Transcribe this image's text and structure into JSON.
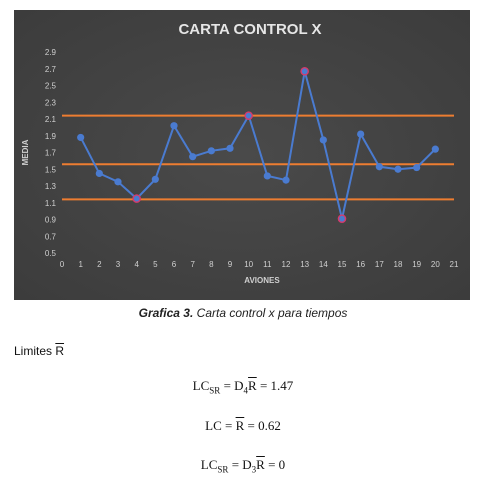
{
  "chart_data": {
    "type": "line",
    "title": "CARTA CONTROL X",
    "xlabel": "AVIONES",
    "ylabel": "MEDIA",
    "xlim": [
      0,
      21
    ],
    "ylim": [
      0.5,
      2.9
    ],
    "yticks": [
      "0.5",
      "0.7",
      "0.9",
      "1.1",
      "1.3",
      "1.5",
      "1.7",
      "1.9",
      "2.1",
      "2.3",
      "2.5",
      "2.7",
      "2.9"
    ],
    "xticks": [
      "0",
      "1",
      "2",
      "3",
      "4",
      "5",
      "6",
      "7",
      "8",
      "9",
      "10",
      "11",
      "12",
      "13",
      "14",
      "15",
      "16",
      "17",
      "18",
      "19",
      "20",
      "21"
    ],
    "grid": false,
    "series": [
      {
        "values": [
          {
            "x": 1,
            "y": 1.88
          },
          {
            "x": 2,
            "y": 1.45
          },
          {
            "x": 3,
            "y": 1.35
          },
          {
            "x": 4,
            "y": 1.15
          },
          {
            "x": 5,
            "y": 1.38
          },
          {
            "x": 6,
            "y": 2.02
          },
          {
            "x": 7,
            "y": 1.65
          },
          {
            "x": 8,
            "y": 1.72
          },
          {
            "x": 9,
            "y": 1.75
          },
          {
            "x": 10,
            "y": 2.14
          },
          {
            "x": 11,
            "y": 1.42
          },
          {
            "x": 12,
            "y": 1.37
          },
          {
            "x": 13,
            "y": 2.67
          },
          {
            "x": 14,
            "y": 1.85
          },
          {
            "x": 15,
            "y": 0.91
          },
          {
            "x": 16,
            "y": 1.92
          },
          {
            "x": 17,
            "y": 1.53
          },
          {
            "x": 18,
            "y": 1.5
          },
          {
            "x": 19,
            "y": 1.52
          },
          {
            "x": 20,
            "y": 1.74
          }
        ]
      }
    ],
    "control_lines": [
      2.14,
      1.56,
      1.14
    ],
    "highlighted_points": [
      4,
      10,
      13,
      15
    ],
    "colors": {
      "background": "#3c3c3c",
      "series": "#4a7bd0",
      "control_lines": "#ed7d31",
      "highlight": "#d63a6b",
      "text": "#d0d0d0"
    }
  },
  "caption": {
    "bold": "Grafica 3.",
    "rest": " Carta control x para tiempos"
  },
  "limits": {
    "label_prefix": "Limites ",
    "label_symbol": "R"
  },
  "equations": [
    {
      "lhs": "LC",
      "lhs_sub": "SR",
      "mid": "D",
      "mid_sub": "4",
      "bar": "R",
      "rhs": " = 1.47"
    },
    {
      "lhs": "LC",
      "lhs_sub": "",
      "mid": "",
      "mid_sub": "",
      "bar": "R",
      "rhs": " = 0.62"
    },
    {
      "lhs": "LC",
      "lhs_sub": "SR",
      "mid": "D",
      "mid_sub": "3",
      "bar": "R",
      "rhs": " = 0"
    }
  ]
}
